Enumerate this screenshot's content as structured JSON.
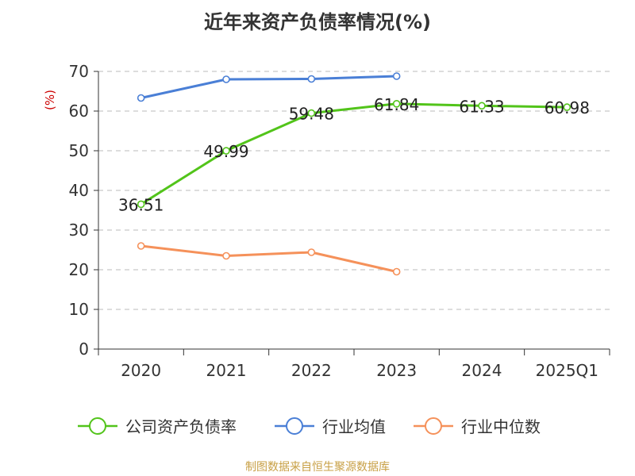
{
  "colors": {
    "company": "#52c41a",
    "avg": "#4a7fd6",
    "median": "#f5915a",
    "grid": "#bbbbbb",
    "axis": "#333333",
    "ylabel": "#cc0000",
    "source": "#c8a046"
  },
  "chart_data": {
    "type": "line",
    "title": "近年来资产负债率情况(%)",
    "ylabel": "(%)",
    "xlabel": "",
    "categories": [
      "2020",
      "2021",
      "2022",
      "2023",
      "2024",
      "2025Q1"
    ],
    "ylim": [
      0,
      70
    ],
    "yticks": [
      0,
      10,
      20,
      30,
      40,
      50,
      60,
      70
    ],
    "grid": true,
    "legend_position": "bottom",
    "series": [
      {
        "name": "公司资产负债率",
        "color_key": "company",
        "values": [
          36.51,
          49.99,
          59.48,
          61.84,
          61.33,
          60.98
        ],
        "show_labels": true
      },
      {
        "name": "行业均值",
        "color_key": "avg",
        "values": [
          63.3,
          68.0,
          68.1,
          68.8,
          null,
          null
        ],
        "show_labels": false
      },
      {
        "name": "行业中位数",
        "color_key": "median",
        "values": [
          26.0,
          23.5,
          24.4,
          19.5,
          null,
          null
        ],
        "show_labels": false
      }
    ]
  },
  "footer": {
    "source": "制图数据来自恒生聚源数据库"
  }
}
